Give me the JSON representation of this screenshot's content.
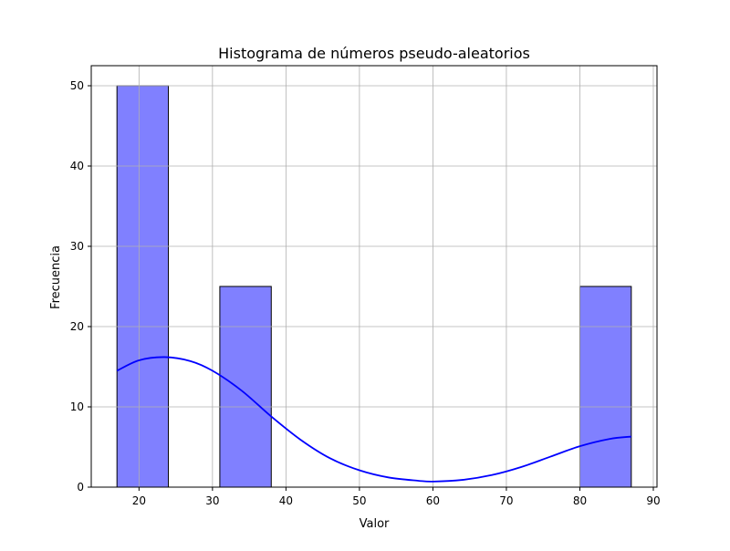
{
  "chart_data": {
    "type": "bar",
    "subtype": "histogram",
    "title": "Histograma de números pseudo-aleatorios",
    "xlabel": "Valor",
    "ylabel": "Frecuencia",
    "xlim": [
      13.5,
      90.5
    ],
    "ylim": [
      0,
      52.5
    ],
    "xticks": [
      20,
      30,
      40,
      50,
      60,
      70,
      80,
      90
    ],
    "yticks": [
      0,
      10,
      20,
      30,
      40,
      50
    ],
    "grid": true,
    "bar_color": "#8080ff",
    "bar_edge_color": "#000000",
    "bins": [
      {
        "x0": 17,
        "x1": 24,
        "count": 50
      },
      {
        "x0": 24,
        "x1": 31,
        "count": 0
      },
      {
        "x0": 31,
        "x1": 38,
        "count": 25
      },
      {
        "x0": 38,
        "x1": 45,
        "count": 0
      },
      {
        "x0": 45,
        "x1": 52,
        "count": 0
      },
      {
        "x0": 52,
        "x1": 59,
        "count": 0
      },
      {
        "x0": 59,
        "x1": 66,
        "count": 0
      },
      {
        "x0": 66,
        "x1": 73,
        "count": 0
      },
      {
        "x0": 73,
        "x1": 80,
        "count": 0
      },
      {
        "x0": 80,
        "x1": 87,
        "count": 25
      }
    ],
    "kde": {
      "color": "#0000ff",
      "x": [
        17,
        20,
        23.5,
        27,
        30,
        34,
        38,
        42,
        46,
        50,
        54,
        58,
        60,
        64,
        68,
        72,
        76,
        80,
        84,
        87
      ],
      "y": [
        14.5,
        15.8,
        16.2,
        15.7,
        14.5,
        12.0,
        8.8,
        5.9,
        3.6,
        2.1,
        1.2,
        0.8,
        0.7,
        0.9,
        1.5,
        2.5,
        3.8,
        5.1,
        6.0,
        6.3
      ]
    }
  }
}
